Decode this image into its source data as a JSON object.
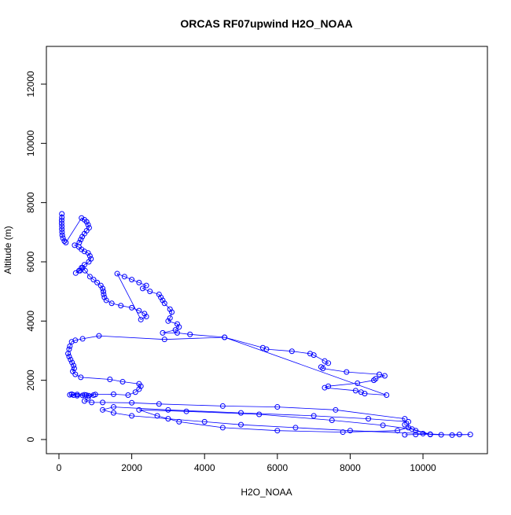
{
  "chart_data": {
    "type": "line",
    "title": "ORCAS RF07upwind H2O_NOAA",
    "x_label": "H2O_NOAA",
    "y_label": "Altitude (m)",
    "color": "#0000ff",
    "markers": true,
    "x": [
      80,
      80,
      75,
      75,
      80,
      80,
      85,
      90,
      110,
      150,
      190,
      620,
      700,
      760,
      800,
      830,
      760,
      700,
      640,
      600,
      560,
      430,
      550,
      620,
      700,
      800,
      850,
      880,
      820,
      700,
      620,
      550,
      460,
      580,
      650,
      720,
      850,
      950,
      1050,
      1150,
      1200,
      1220,
      1230,
      1250,
      1300,
      1450,
      1700,
      2000,
      2200,
      2350,
      2400,
      2250,
      1600,
      1800,
      2000,
      2200,
      2400,
      2300,
      2500,
      2750,
      2800,
      2850,
      2900,
      3050,
      3100,
      3050,
      3000,
      3250,
      3300,
      3200,
      2850,
      3250,
      3600,
      4550,
      5600,
      5700,
      6400,
      6900,
      7000,
      7300,
      7400,
      7200,
      7250,
      7900,
      8800,
      8950,
      8700,
      8650,
      8200,
      7400,
      7300,
      8150,
      8300,
      8400,
      9000,
      4550,
      2900,
      1100,
      650,
      450,
      350,
      300,
      280,
      250,
      280,
      320,
      360,
      400,
      420,
      380,
      450,
      600,
      1400,
      1750,
      2200,
      2250,
      2200,
      2100,
      1900,
      1500,
      1000,
      700,
      500,
      350,
      300,
      400,
      500,
      650,
      750,
      820,
      950,
      800,
      700,
      900,
      1200,
      2000,
      2750,
      4500,
      6000,
      7600,
      9500,
      9500,
      9800,
      10200,
      10500,
      11000,
      11300,
      10800,
      10000,
      8000,
      6500,
      5000,
      4000,
      3000,
      2000,
      1500,
      1200,
      1500,
      3000,
      5000,
      7000,
      8500,
      9600,
      9600,
      9300,
      7800,
      6000,
      4500,
      3300,
      2700,
      2200,
      3500,
      5500,
      7500,
      8900,
      9700,
      10200,
      9800,
      9500
    ],
    "values": [
      7620,
      7500,
      7400,
      7300,
      7200,
      7100,
      7000,
      6900,
      6800,
      6700,
      6650,
      7480,
      7420,
      7350,
      7250,
      7150,
      7050,
      6950,
      6850,
      6750,
      6650,
      6560,
      6500,
      6420,
      6350,
      6300,
      6200,
      6100,
      6000,
      5900,
      5800,
      5700,
      5620,
      5700,
      5800,
      5700,
      5500,
      5400,
      5300,
      5200,
      5100,
      5000,
      4900,
      4800,
      4700,
      4600,
      4520,
      4450,
      4350,
      4250,
      4150,
      4050,
      5600,
      5500,
      5400,
      5300,
      5200,
      5100,
      5000,
      4900,
      4800,
      4700,
      4600,
      4400,
      4300,
      4100,
      4000,
      3900,
      3800,
      3700,
      3600,
      3600,
      3550,
      3450,
      3100,
      3050,
      2980,
      2900,
      2850,
      2650,
      2580,
      2450,
      2400,
      2280,
      2200,
      2150,
      2050,
      2000,
      1900,
      1800,
      1750,
      1650,
      1600,
      1550,
      1500,
      3450,
      3380,
      3500,
      3400,
      3350,
      3300,
      3150,
      3050,
      2900,
      2800,
      2700,
      2600,
      2500,
      2400,
      2300,
      2200,
      2100,
      2030,
      1950,
      1880,
      1800,
      1700,
      1600,
      1500,
      1530,
      1520,
      1510,
      1520,
      1530,
      1510,
      1500,
      1480,
      1490,
      1500,
      1480,
      1500,
      1400,
      1300,
      1250,
      1250,
      1240,
      1200,
      1130,
      1100,
      1000,
      700,
      500,
      300,
      170,
      160,
      170,
      170,
      150,
      200,
      300,
      400,
      500,
      600,
      700,
      800,
      900,
      1000,
      1100,
      1000,
      900,
      800,
      700,
      600,
      400,
      300,
      250,
      300,
      400,
      600,
      800,
      1000,
      950,
      850,
      650,
      480,
      350,
      180,
      170,
      160
    ],
    "xlim": [
      -345,
      11770
    ],
    "ylim": [
      -478,
      13274
    ],
    "xticks": [
      0,
      2000,
      4000,
      6000,
      8000,
      10000
    ],
    "yticks": [
      0,
      2000,
      4000,
      6000,
      8000,
      10000,
      12000
    ]
  }
}
